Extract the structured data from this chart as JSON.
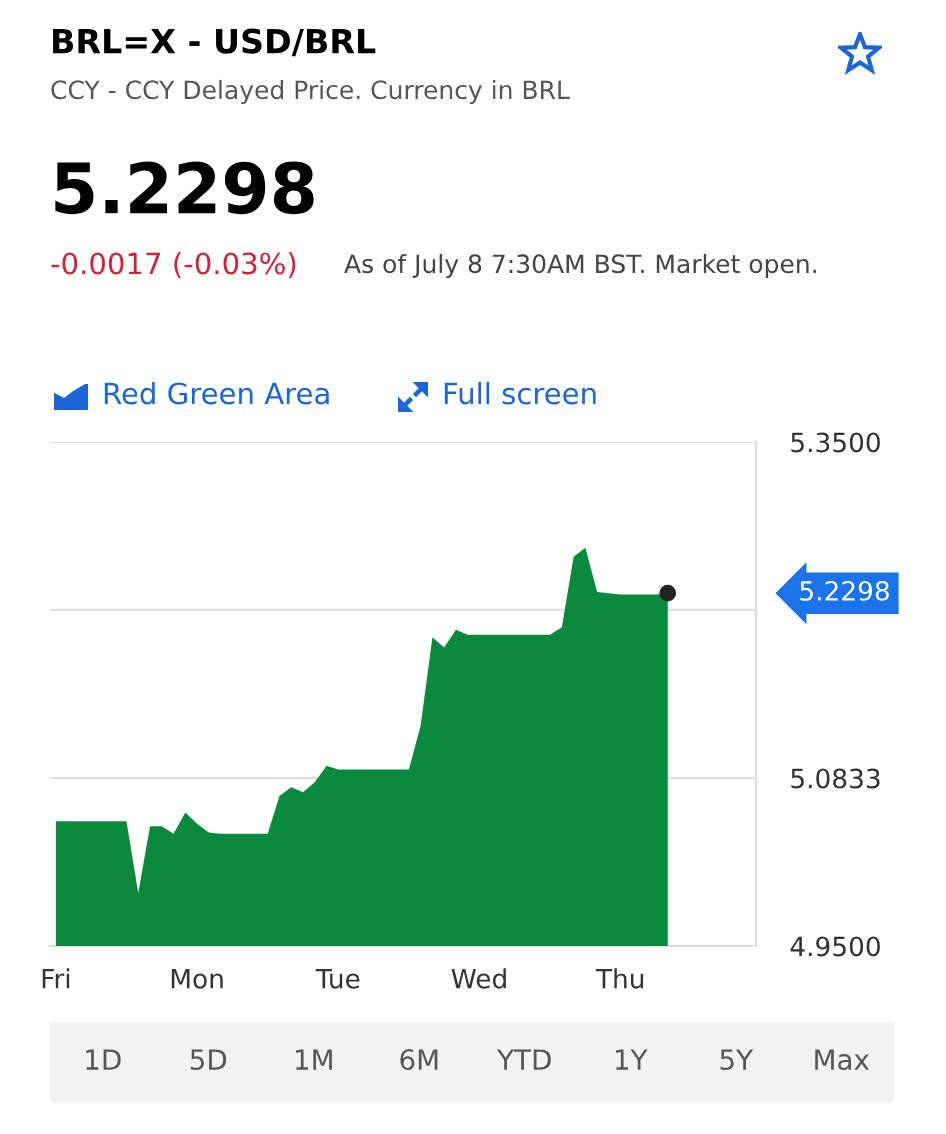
{
  "chart_data": {
    "type": "area",
    "title": "BRL=X - USD/BRL",
    "subtitle": "CCY - CCY Delayed Price. Currency in BRL",
    "annotations": [
      "5.2298",
      "-0.0017 (-0.03%)",
      "As of July 8 7:30AM BST. Market open.",
      "Red Green Area",
      "Full screen",
      "1D",
      "5D",
      "1M",
      "6M",
      "YTD",
      "1Y",
      "5Y",
      "Max",
      "5.2298"
    ],
    "categories": [
      "Fri",
      null,
      null,
      null,
      null,
      null,
      null,
      null,
      null,
      null,
      null,
      null,
      "Mon",
      null,
      null,
      null,
      null,
      null,
      null,
      null,
      null,
      null,
      null,
      null,
      "Tue",
      null,
      null,
      null,
      null,
      null,
      null,
      null,
      null,
      null,
      null,
      null,
      "Wed",
      null,
      null,
      null,
      null,
      null,
      null,
      null,
      null,
      null,
      null,
      null,
      "Thu",
      null,
      null,
      null,
      null,
      null,
      null,
      null,
      null,
      null,
      null,
      null
    ],
    "series": [
      {
        "color": "#0b8a3e",
        "values": [
          5.049,
          5.049,
          5.049,
          5.049,
          5.049,
          5.049,
          5.049,
          4.992,
          5.045,
          5.045,
          5.039,
          5.056,
          5.047,
          5.04,
          5.039,
          5.039,
          5.039,
          5.039,
          5.039,
          5.069,
          5.076,
          5.072,
          5.08,
          5.093,
          5.09,
          5.09,
          5.09,
          5.09,
          5.09,
          5.09,
          5.09,
          5.125,
          5.195,
          5.187,
          5.201,
          5.197,
          5.197,
          5.197,
          5.197,
          5.197,
          5.197,
          5.197,
          5.197,
          5.203,
          5.259,
          5.266,
          5.231,
          5.23,
          5.229,
          5.229,
          5.229,
          5.229,
          5.23,
          null,
          null,
          null,
          null,
          null,
          null,
          null
        ]
      }
    ],
    "ylim": [
      4.95,
      5.35
    ],
    "yticks": [
      {
        "value": 4.95,
        "label": "4.9500"
      },
      {
        "value": 5.0833,
        "label": "5.0833"
      },
      {
        "value": 5.2167,
        "label": null
      },
      {
        "value": 5.35,
        "label": "5.3500"
      }
    ],
    "grid": "y"
  }
}
